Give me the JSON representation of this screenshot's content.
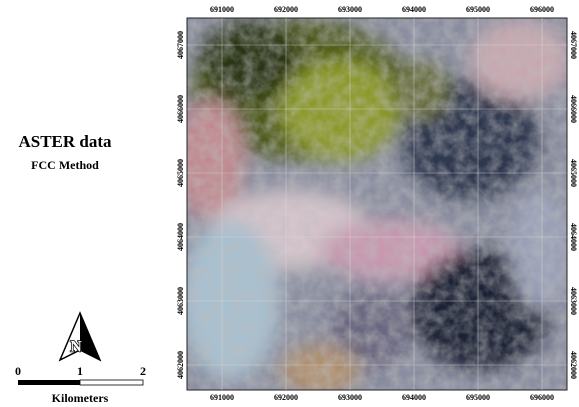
{
  "map": {
    "title": "ASTER data",
    "subtitle": "FCC Method",
    "xticks": [
      "691000",
      "692000",
      "693000",
      "694000",
      "695000",
      "696000"
    ],
    "yticks": [
      "4067000",
      "4066000",
      "4065000",
      "4064000",
      "4063000",
      "4062000"
    ],
    "north": "N",
    "scale_bar": {
      "labels": [
        "0",
        "1",
        "2"
      ],
      "unit": "Kilometers"
    }
  }
}
